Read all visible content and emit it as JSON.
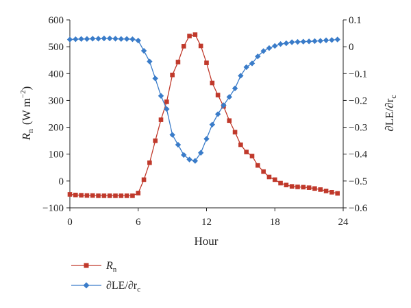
{
  "chart_data": {
    "type": "line",
    "xlabel": "Hour",
    "ylabel_left": {
      "symbol": "R",
      "sub": "n",
      "unit": "(W m",
      "exp": "−2",
      "close": ")"
    },
    "ylabel_right": {
      "main": "∂LE/∂r",
      "sub": "c"
    },
    "xlim": [
      0,
      24
    ],
    "xticks": [
      "0",
      "6",
      "12",
      "18",
      "24"
    ],
    "ylim_left": [
      -100,
      600
    ],
    "yticks_left": [
      "−100",
      "0",
      "100",
      "200",
      "300",
      "400",
      "500",
      "600"
    ],
    "ylim_right": [
      -0.6,
      0.1
    ],
    "yticks_right": [
      "−0.6",
      "−0.5",
      "−0.4",
      "−0.3",
      "−0.2",
      "−0.1",
      "0",
      "0.1"
    ],
    "grid": false,
    "legend_position": "bottom-left",
    "x": [
      0,
      0.5,
      1,
      1.5,
      2,
      2.5,
      3,
      3.5,
      4,
      4.5,
      5,
      5.5,
      6,
      6.5,
      7,
      7.5,
      8,
      8.5,
      9,
      9.5,
      10,
      10.5,
      11,
      11.5,
      12,
      12.5,
      13,
      13.5,
      14,
      14.5,
      15,
      15.5,
      16,
      16.5,
      17,
      17.5,
      18,
      18.5,
      19,
      19.5,
      20,
      20.5,
      21,
      21.5,
      22,
      22.5,
      23,
      23.5
    ],
    "series": [
      {
        "name": "R",
        "name_sub": "n",
        "axis": "left",
        "marker": "square",
        "color": "#c0392b",
        "values": [
          -50,
          -52,
          -53,
          -54,
          -54,
          -55,
          -55,
          -55,
          -55,
          -55,
          -55,
          -55,
          -45,
          5,
          68,
          150,
          228,
          295,
          395,
          443,
          502,
          540,
          545,
          503,
          440,
          365,
          320,
          278,
          225,
          182,
          135,
          108,
          93,
          58,
          35,
          15,
          5,
          -8,
          -15,
          -20,
          -22,
          -23,
          -25,
          -28,
          -32,
          -37,
          -42,
          -46
        ]
      },
      {
        "name": "∂LE/∂r",
        "name_sub": "c",
        "axis": "right",
        "marker": "diamond",
        "color": "#3a7cc9",
        "values": [
          0.027,
          0.028,
          0.029,
          0.029,
          0.03,
          0.03,
          0.031,
          0.031,
          0.03,
          0.029,
          0.029,
          0.028,
          0.023,
          -0.015,
          -0.055,
          -0.118,
          -0.183,
          -0.232,
          -0.328,
          -0.365,
          -0.403,
          -0.42,
          -0.425,
          -0.395,
          -0.343,
          -0.29,
          -0.251,
          -0.218,
          -0.187,
          -0.155,
          -0.108,
          -0.076,
          -0.062,
          -0.036,
          -0.016,
          -0.005,
          0.003,
          0.01,
          0.013,
          0.017,
          0.018,
          0.019,
          0.02,
          0.021,
          0.022,
          0.024,
          0.025,
          0.027
        ]
      }
    ]
  },
  "colors": {
    "rn": "#c0392b",
    "dle": "#3a7cc9",
    "axis": "#222222"
  }
}
